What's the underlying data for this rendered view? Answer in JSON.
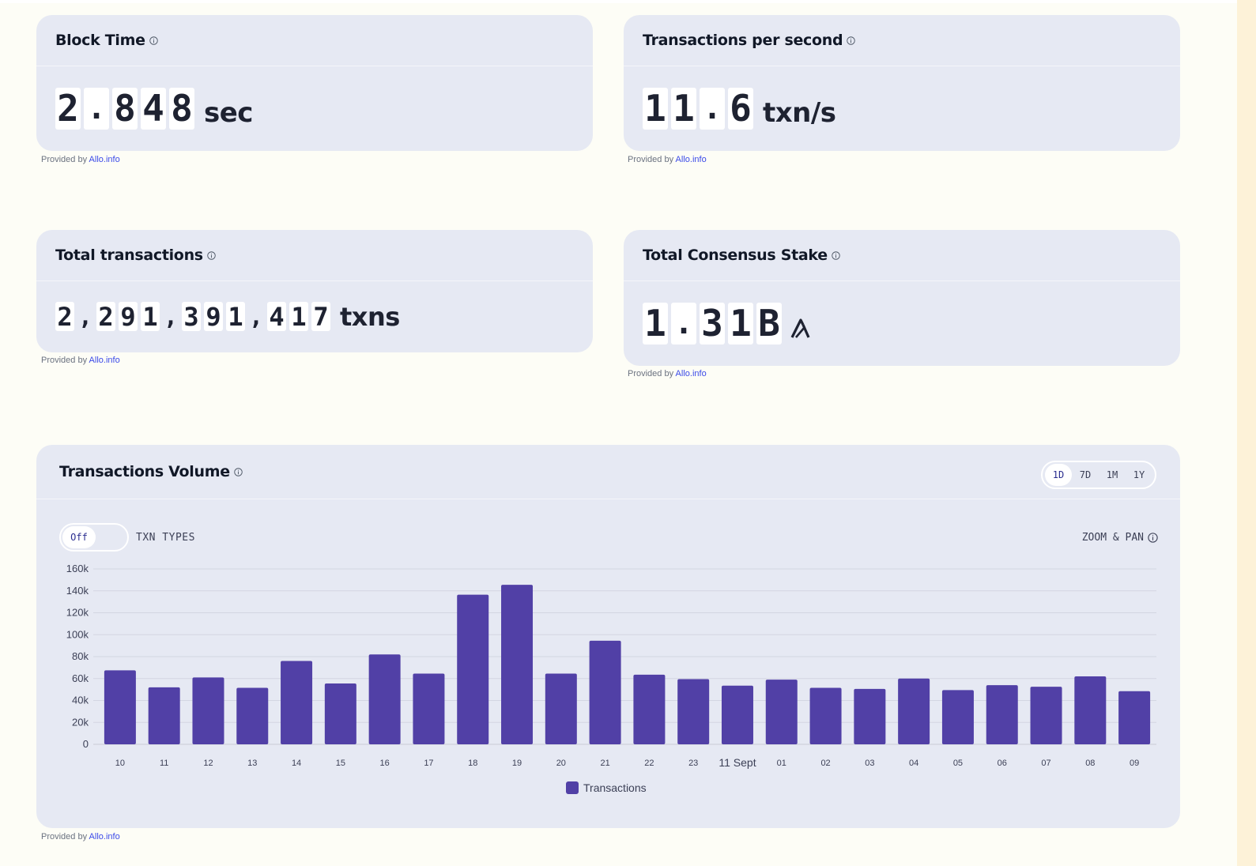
{
  "provider": {
    "prefix": "Provided by",
    "link": "Allo.info"
  },
  "block_time": {
    "title": "Block Time",
    "digits": [
      "2",
      ".",
      "8",
      "4",
      "8"
    ],
    "unit": "sec"
  },
  "tps": {
    "title": "Transactions per second",
    "digits": [
      "1",
      "1",
      ".",
      "6"
    ],
    "unit": "txn/s"
  },
  "total_txns": {
    "title": "Total transactions",
    "digits": [
      "2",
      ",",
      "2",
      "9",
      "1",
      ",",
      "3",
      "9",
      "1",
      ",",
      "4",
      "1",
      "7"
    ],
    "unit": "txns"
  },
  "stake": {
    "title": "Total Consensus Stake",
    "digits": [
      "1",
      ".",
      "3",
      "1",
      "B"
    ],
    "unit_icon": "algorand-icon"
  },
  "volume": {
    "title": "Transactions Volume",
    "ranges": [
      "1D",
      "7D",
      "1M",
      "1Y"
    ],
    "active_range": "1D",
    "toggle_label": "Off",
    "txn_types_label": "TXN TYPES",
    "zoom_label": "ZOOM & PAN"
  },
  "colors": {
    "bar": "#5140a6",
    "card": "#e6e9f3",
    "link": "#3b4ae8"
  },
  "chart_data": {
    "type": "bar",
    "categories": [
      "10",
      "11",
      "12",
      "13",
      "14",
      "15",
      "16",
      "17",
      "18",
      "19",
      "20",
      "21",
      "22",
      "23",
      "11 Sept",
      "01",
      "02",
      "03",
      "04",
      "05",
      "06",
      "07",
      "08",
      "09"
    ],
    "series": [
      {
        "name": "Transactions",
        "values": [
          67500,
          52000,
          61000,
          51500,
          76000,
          55500,
          82000,
          64500,
          136500,
          145500,
          64500,
          94500,
          63500,
          59500,
          53500,
          59000,
          51500,
          50500,
          60000,
          49500,
          54000,
          52500,
          62000,
          48500
        ]
      }
    ],
    "ylim": [
      0,
      160000
    ],
    "yticks": [
      "0",
      "20k",
      "40k",
      "60k",
      "80k",
      "100k",
      "120k",
      "140k",
      "160k"
    ],
    "grid": true,
    "legend": "bottom-center"
  }
}
